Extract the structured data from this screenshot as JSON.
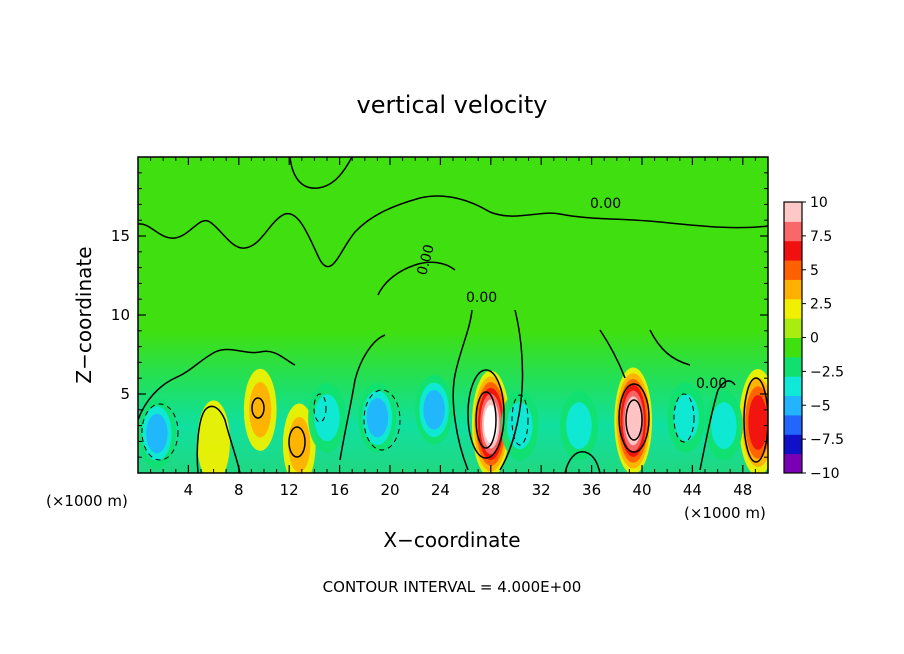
{
  "chart_data": {
    "type": "heatmap",
    "title": "vertical velocity",
    "xlabel": "X−coordinate",
    "ylabel": "Z−coordinate",
    "x_unit_left": "(×1000 m)",
    "x_unit_right": "(×1000 m)",
    "footer": "CONTOUR INTERVAL = 4.000E+00",
    "xlim": [
      0,
      50
    ],
    "ylim": [
      0,
      20
    ],
    "x_ticks": [
      4,
      8,
      12,
      16,
      20,
      24,
      28,
      32,
      36,
      40,
      44,
      48
    ],
    "y_ticks": [
      5,
      10,
      15
    ],
    "contour_labels": [
      "0.00",
      "0.00",
      "0.00",
      "0.00"
    ],
    "colorbar": {
      "range": [
        -10,
        10
      ],
      "tick_values": [
        10,
        7.5,
        5,
        2.5,
        0,
        -2.5,
        -5,
        -7.5,
        -10
      ],
      "tick_labels": [
        "10",
        "7.5",
        "5",
        "2.5",
        "0",
        "−2.5",
        "−5",
        "−7.5",
        "−10"
      ],
      "colors": [
        "#7a00b4",
        "#1010c8",
        "#2266ff",
        "#22b4ff",
        "#10e8d8",
        "#10e070",
        "#40e010",
        "#a8ec10",
        "#f0f000",
        "#ffb000",
        "#ff6000",
        "#f01010",
        "#f86868",
        "#ffc8c8"
      ]
    },
    "features": [
      {
        "kind": "updraft",
        "x": 28.0,
        "z": 3.1,
        "peak": 10.0
      },
      {
        "kind": "updraft",
        "x": 39.3,
        "z": 3.3,
        "peak": 9.0
      },
      {
        "kind": "updraft",
        "x": 49.2,
        "z": 3.2,
        "peak": 6.8
      },
      {
        "kind": "updraft",
        "x": 12.8,
        "z": 1.8,
        "peak": 4.0
      },
      {
        "kind": "updraft",
        "x": 9.7,
        "z": 4.0,
        "peak": 3.0
      },
      {
        "kind": "updraft",
        "x": 6.0,
        "z": 2.0,
        "peak": 2.5
      },
      {
        "kind": "downdraft",
        "x": 1.5,
        "z": 2.5,
        "peak": -5.5
      },
      {
        "kind": "downdraft",
        "x": 19.0,
        "z": 3.5,
        "peak": -5.0
      },
      {
        "kind": "downdraft",
        "x": 23.5,
        "z": 4.0,
        "peak": -4.5
      },
      {
        "kind": "downdraft",
        "x": 30.3,
        "z": 3.0,
        "peak": -4.0
      },
      {
        "kind": "downdraft",
        "x": 35.0,
        "z": 3.0,
        "peak": -3.5
      },
      {
        "kind": "downdraft",
        "x": 43.5,
        "z": 3.5,
        "peak": -4.0
      },
      {
        "kind": "downdraft",
        "x": 46.5,
        "z": 3.0,
        "peak": -4.0
      },
      {
        "kind": "downdraft",
        "x": 15.0,
        "z": 3.5,
        "peak": -3.0
      }
    ]
  }
}
